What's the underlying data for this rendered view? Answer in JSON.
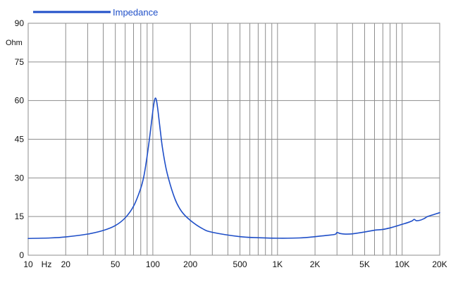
{
  "chart_data": {
    "type": "line",
    "title": "",
    "xlabel": "Hz",
    "ylabel": "Ohm",
    "x_scale": "log",
    "xlim": [
      10,
      20000
    ],
    "ylim": [
      0,
      90
    ],
    "grid": true,
    "legend_position": "top-left",
    "x_ticks": [
      {
        "value": 10,
        "label": "10"
      },
      {
        "value": 20,
        "label": "20"
      },
      {
        "value": 50,
        "label": "50"
      },
      {
        "value": 100,
        "label": "100"
      },
      {
        "value": 200,
        "label": "200"
      },
      {
        "value": 500,
        "label": "500"
      },
      {
        "value": 1000,
        "label": "1K"
      },
      {
        "value": 2000,
        "label": "2K"
      },
      {
        "value": 5000,
        "label": "5K"
      },
      {
        "value": 10000,
        "label": "10K"
      },
      {
        "value": 20000,
        "label": "20K"
      }
    ],
    "y_ticks": [
      {
        "value": 0,
        "label": "0"
      },
      {
        "value": 15,
        "label": "15"
      },
      {
        "value": 30,
        "label": "30"
      },
      {
        "value": 45,
        "label": "45"
      },
      {
        "value": 60,
        "label": "60"
      },
      {
        "value": 75,
        "label": "75"
      },
      {
        "value": 90,
        "label": "90"
      }
    ],
    "series": [
      {
        "name": "Impedance",
        "color": "#1f4fc8",
        "x": [
          10,
          15,
          20,
          30,
          40,
          50,
          60,
          70,
          80,
          85,
          90,
          95,
          100,
          103,
          105,
          107,
          110,
          115,
          120,
          130,
          150,
          170,
          200,
          250,
          300,
          500,
          700,
          1000,
          1500,
          2000,
          2500,
          2900,
          3000,
          3200,
          3500,
          4000,
          5000,
          6000,
          7000,
          8000,
          9000,
          10000,
          11000,
          12000,
          12500,
          13000,
          14000,
          15000,
          16000,
          18000,
          20000
        ],
        "y": [
          6.5,
          6.7,
          7.1,
          8.2,
          9.6,
          11.5,
          14.5,
          19.0,
          26.0,
          31.0,
          38.5,
          47.0,
          56.0,
          60.0,
          61.0,
          60.0,
          56.0,
          48.0,
          41.0,
          32.0,
          22.0,
          17.0,
          13.5,
          10.3,
          8.9,
          7.2,
          6.8,
          6.6,
          6.7,
          7.2,
          7.7,
          8.1,
          8.8,
          8.4,
          8.2,
          8.3,
          9.0,
          9.7,
          10.0,
          10.6,
          11.3,
          12.0,
          12.6,
          13.3,
          13.9,
          13.4,
          13.6,
          14.2,
          15.0,
          15.8,
          16.5
        ]
      }
    ]
  }
}
